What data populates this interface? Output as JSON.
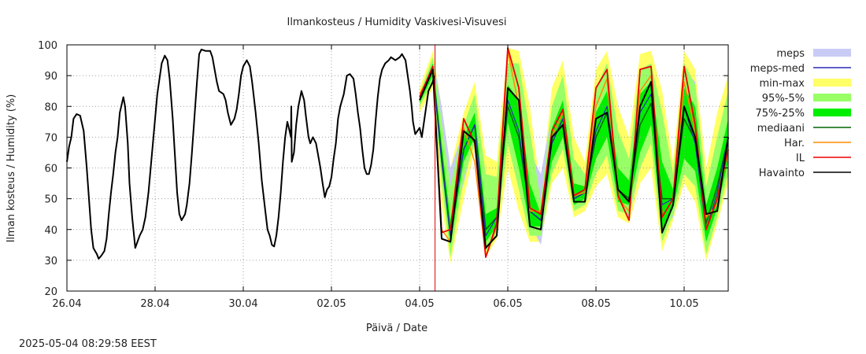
{
  "chart_data": {
    "type": "line",
    "title": "Ilmankosteus / Humidity  Vaskivesi-Visuvesi",
    "xlabel": "Päivä / Date",
    "ylabel": "Ilman kosteus / Humidity (%)",
    "x_tick_labels": [
      "26.04",
      "28.04",
      "30.04",
      "02.05",
      "04.05",
      "06.05",
      "08.05",
      "10.05"
    ],
    "x_ticks_day": [
      0,
      2,
      4,
      6,
      8,
      10,
      12,
      14
    ],
    "xlim_day": [
      0,
      15
    ],
    "ylim": [
      20,
      100
    ],
    "y_ticks": [
      20,
      30,
      40,
      50,
      60,
      70,
      80,
      90,
      100
    ],
    "grid": true,
    "legend_position": "right",
    "now_marker_day": 8.35,
    "legend": [
      {
        "label": "meps",
        "style": "band",
        "color": "#c8ccf4"
      },
      {
        "label": "meps-med",
        "style": "line",
        "color": "#2a2ab4"
      },
      {
        "label": "min-max",
        "style": "band",
        "color": "#ffff66"
      },
      {
        "label": "95%-5%",
        "style": "band",
        "color": "#99ff66"
      },
      {
        "label": "75%-25%",
        "style": "band",
        "color": "#00ee00"
      },
      {
        "label": "mediaani",
        "style": "line",
        "color": "#006400"
      },
      {
        "label": "Har.",
        "style": "line",
        "color": "#ff8c00"
      },
      {
        "label": "IL",
        "style": "line",
        "color": "#ee0000"
      },
      {
        "label": "Havainto",
        "style": "line",
        "color": "#000000"
      }
    ],
    "observed": {
      "name": "Havainto",
      "points": [
        [
          0.0,
          62
        ],
        [
          0.05,
          67
        ],
        [
          0.1,
          70
        ],
        [
          0.15,
          76
        ],
        [
          0.22,
          77.5
        ],
        [
          0.3,
          77
        ],
        [
          0.38,
          72
        ],
        [
          0.45,
          60
        ],
        [
          0.5,
          50
        ],
        [
          0.55,
          40
        ],
        [
          0.6,
          34
        ],
        [
          0.68,
          32
        ],
        [
          0.72,
          30.5
        ],
        [
          0.78,
          31.5
        ],
        [
          0.85,
          33
        ],
        [
          0.9,
          37
        ],
        [
          0.95,
          45
        ],
        [
          1.0,
          52
        ],
        [
          1.05,
          58
        ],
        [
          1.1,
          65
        ],
        [
          1.15,
          70
        ],
        [
          1.2,
          78
        ],
        [
          1.28,
          83
        ],
        [
          1.32,
          80
        ],
        [
          1.38,
          68
        ],
        [
          1.42,
          55
        ],
        [
          1.48,
          44
        ],
        [
          1.55,
          34
        ],
        [
          1.6,
          36
        ],
        [
          1.65,
          38
        ],
        [
          1.72,
          40
        ],
        [
          1.78,
          44
        ],
        [
          1.85,
          52
        ],
        [
          1.9,
          60
        ],
        [
          1.95,
          68
        ],
        [
          2.0,
          76
        ],
        [
          2.05,
          84
        ],
        [
          2.1,
          89
        ],
        [
          2.15,
          94
        ],
        [
          2.22,
          96.5
        ],
        [
          2.28,
          95
        ],
        [
          2.33,
          89
        ],
        [
          2.4,
          76
        ],
        [
          2.45,
          64
        ],
        [
          2.5,
          52
        ],
        [
          2.55,
          45
        ],
        [
          2.6,
          43
        ],
        [
          2.68,
          45
        ],
        [
          2.72,
          48
        ],
        [
          2.78,
          55
        ],
        [
          2.83,
          64
        ],
        [
          2.88,
          74
        ],
        [
          2.95,
          88
        ],
        [
          3.0,
          97
        ],
        [
          3.05,
          98.5
        ],
        [
          3.15,
          98
        ],
        [
          3.25,
          98
        ],
        [
          3.3,
          96
        ],
        [
          3.4,
          88
        ],
        [
          3.45,
          85
        ],
        [
          3.55,
          84
        ],
        [
          3.6,
          82
        ],
        [
          3.65,
          78
        ],
        [
          3.72,
          74
        ],
        [
          3.8,
          76
        ],
        [
          3.85,
          79
        ],
        [
          3.9,
          84
        ],
        [
          3.95,
          90
        ],
        [
          4.0,
          93
        ],
        [
          4.08,
          95
        ],
        [
          4.15,
          93
        ],
        [
          4.2,
          88
        ],
        [
          4.28,
          78
        ],
        [
          4.35,
          68
        ],
        [
          4.42,
          56
        ],
        [
          4.5,
          46
        ],
        [
          4.55,
          40
        ],
        [
          4.6,
          38
        ],
        [
          4.65,
          35
        ],
        [
          4.7,
          34.5
        ],
        [
          4.75,
          38
        ],
        [
          4.8,
          44
        ],
        [
          4.85,
          52
        ],
        [
          4.9,
          62
        ],
        [
          4.95,
          70
        ],
        [
          5.0,
          75
        ],
        [
          5.05,
          72
        ],
        [
          5.08,
          70
        ],
        [
          5.09,
          80
        ],
        [
          5.1,
          62
        ],
        [
          5.15,
          65
        ],
        [
          5.2,
          74
        ],
        [
          5.25,
          80
        ],
        [
          5.32,
          85
        ],
        [
          5.38,
          82
        ],
        [
          5.42,
          77
        ],
        [
          5.48,
          70
        ],
        [
          5.52,
          68
        ],
        [
          5.58,
          70
        ],
        [
          5.65,
          68
        ],
        [
          5.7,
          64
        ],
        [
          5.75,
          60
        ],
        [
          5.8,
          55
        ],
        [
          5.85,
          50.5
        ],
        [
          5.9,
          53
        ],
        [
          5.95,
          54
        ],
        [
          6.0,
          57
        ],
        [
          6.05,
          63
        ],
        [
          6.1,
          68
        ],
        [
          6.15,
          76
        ],
        [
          6.2,
          80
        ],
        [
          6.28,
          84
        ],
        [
          6.35,
          90
        ],
        [
          6.42,
          90.5
        ],
        [
          6.5,
          89
        ],
        [
          6.55,
          84
        ],
        [
          6.6,
          78
        ],
        [
          6.65,
          73
        ],
        [
          6.7,
          66
        ],
        [
          6.75,
          60
        ],
        [
          6.8,
          58
        ],
        [
          6.85,
          58
        ],
        [
          6.9,
          61
        ],
        [
          6.95,
          66
        ],
        [
          7.0,
          75
        ],
        [
          7.05,
          83
        ],
        [
          7.1,
          89
        ],
        [
          7.15,
          92
        ],
        [
          7.22,
          94
        ],
        [
          7.3,
          95
        ],
        [
          7.35,
          96
        ],
        [
          7.45,
          95
        ],
        [
          7.55,
          96
        ],
        [
          7.6,
          97
        ],
        [
          7.68,
          95
        ],
        [
          7.72,
          91
        ],
        [
          7.78,
          85
        ],
        [
          7.82,
          80
        ],
        [
          7.85,
          75
        ],
        [
          7.9,
          71
        ],
        [
          7.95,
          72
        ],
        [
          8.0,
          73
        ],
        [
          8.05,
          70
        ],
        [
          8.1,
          75
        ],
        [
          8.15,
          80
        ],
        [
          8.2,
          85
        ],
        [
          8.3,
          88
        ],
        [
          8.33,
          90
        ]
      ]
    },
    "forecast": {
      "days": [
        8.0,
        8.3,
        8.5,
        8.7,
        9.0,
        9.25,
        9.5,
        9.75,
        10.0,
        10.25,
        10.5,
        10.75,
        11.0,
        11.25,
        11.5,
        11.75,
        12.0,
        12.25,
        12.5,
        12.75,
        13.0,
        13.25,
        13.5,
        13.75,
        14.0,
        14.25,
        14.5,
        14.75,
        15.0
      ],
      "min_max_low": [
        78,
        86,
        48,
        29,
        50,
        66,
        31,
        37,
        60,
        46,
        36,
        36,
        55,
        60,
        44,
        46,
        54,
        58,
        44,
        42,
        55,
        60,
        33,
        43,
        55,
        49,
        30,
        42,
        55
      ],
      "min_max_high": [
        86,
        98,
        80,
        60,
        78,
        88,
        64,
        62,
        99,
        98,
        80,
        52,
        86,
        95,
        70,
        62,
        92,
        98,
        80,
        70,
        97,
        98,
        85,
        62,
        98,
        92,
        60,
        78,
        90
      ],
      "p5": [
        80,
        88,
        55,
        31,
        57,
        68,
        33,
        39,
        68,
        53,
        38,
        38,
        58,
        66,
        46,
        48,
        58,
        64,
        46,
        45,
        60,
        68,
        36,
        45,
        58,
        54,
        32,
        44,
        58
      ],
      "p95": [
        84,
        96,
        75,
        54,
        74,
        84,
        58,
        57,
        94,
        94,
        72,
        49,
        80,
        90,
        63,
        58,
        86,
        94,
        72,
        63,
        92,
        94,
        78,
        58,
        94,
        87,
        54,
        70,
        85
      ],
      "p25": [
        81,
        90,
        60,
        35,
        62,
        70,
        36,
        41,
        75,
        60,
        41,
        41,
        62,
        70,
        48,
        50,
        63,
        70,
        49,
        48,
        65,
        74,
        40,
        47,
        63,
        59,
        36,
        47,
        62
      ],
      "p75": [
        83,
        94,
        68,
        43,
        70,
        78,
        45,
        47,
        87,
        82,
        55,
        45,
        73,
        82,
        55,
        54,
        78,
        85,
        60,
        56,
        84,
        88,
        62,
        53,
        86,
        80,
        48,
        60,
        76
      ],
      "median": [
        82,
        92,
        64,
        38,
        66,
        74,
        40,
        44,
        80,
        70,
        46,
        43,
        68,
        76,
        50,
        52,
        70,
        78,
        53,
        50,
        74,
        81,
        50,
        50,
        76,
        69,
        42,
        54,
        70
      ],
      "meps_med": [
        82,
        92,
        62,
        38,
        66,
        74,
        38,
        44,
        82,
        72,
        46,
        43,
        68,
        76,
        50,
        52,
        72,
        80,
        53,
        49,
        78,
        84,
        48,
        50,
        80,
        68,
        40,
        52,
        70
      ],
      "meps_low": [
        80,
        90,
        62,
        40,
        55,
        70,
        34,
        41,
        72,
        62,
        42,
        35,
        60,
        70,
        46,
        48,
        60,
        70,
        48,
        44,
        60,
        75,
        40,
        44,
        60,
        60,
        36,
        44,
        60
      ],
      "meps_high": [
        84,
        96,
        80,
        60,
        72,
        80,
        44,
        50,
        94,
        90,
        65,
        58,
        78,
        86,
        56,
        57,
        84,
        90,
        66,
        58,
        90,
        92,
        58,
        56,
        92,
        88,
        52,
        64,
        80
      ],
      "har": [
        84,
        92,
        40,
        36,
        73,
        62,
        31,
        41,
        98,
        80,
        46,
        46,
        70,
        78,
        51,
        52,
        80,
        89,
        50,
        46,
        85,
        90,
        44,
        50,
        88,
        72,
        44,
        48,
        66
      ],
      "il": [
        83,
        93,
        39,
        40,
        76,
        68,
        31,
        42,
        99,
        86,
        47,
        45,
        72,
        79,
        51,
        53,
        86,
        92,
        51,
        43,
        92,
        93,
        44,
        50,
        93,
        74,
        40,
        50,
        66
      ],
      "obs_fc": [
        82,
        92,
        37,
        36,
        72,
        69,
        34,
        38,
        86,
        82,
        41,
        40,
        70,
        74,
        49,
        49,
        76,
        78,
        53,
        49,
        80,
        88,
        39,
        48,
        80,
        70,
        45,
        46,
        70
      ]
    }
  },
  "footer": {
    "timestamp": "2025-05-04  08:29:58 EEST"
  }
}
